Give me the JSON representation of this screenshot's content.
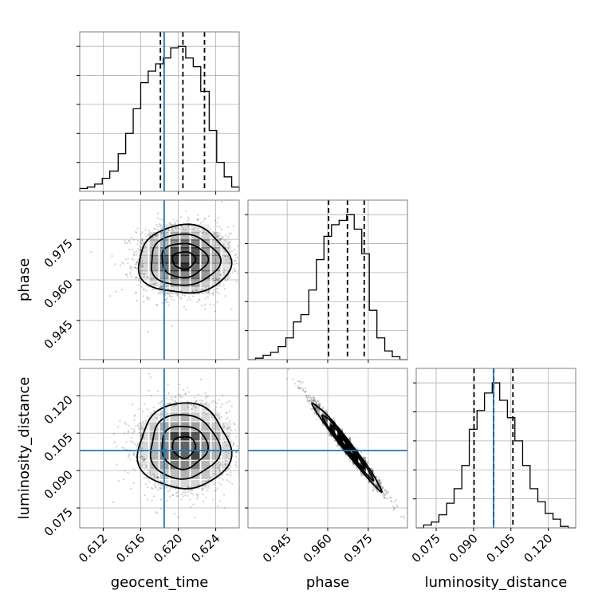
{
  "chart_data": {
    "type": "corner",
    "title": "",
    "parameters": [
      {
        "name": "geocent_time",
        "label": "geocent_time",
        "range": [
          0.6095,
          0.6265
        ],
        "ticks": [
          0.612,
          0.616,
          0.62,
          0.624
        ],
        "tick_labels": [
          "0.612",
          "0.616",
          "0.620",
          "0.624"
        ],
        "injection": 0.6185,
        "quantiles": [
          0.6181,
          0.6205,
          0.6228
        ],
        "hist_bin_edges": [
          0.6095,
          0.6103,
          0.6111,
          0.6119,
          0.6127,
          0.6136,
          0.6144,
          0.6152,
          0.616,
          0.6168,
          0.6176,
          0.6184,
          0.6192,
          0.62,
          0.6208,
          0.6216,
          0.6224,
          0.6233,
          0.6241,
          0.6249,
          0.6257,
          0.6265
        ],
        "hist_counts": [
          0.02,
          0.03,
          0.05,
          0.09,
          0.14,
          0.26,
          0.4,
          0.57,
          0.75,
          0.83,
          0.88,
          0.92,
          0.99,
          1.0,
          0.92,
          0.86,
          0.69,
          0.42,
          0.2,
          0.1,
          0.03
        ]
      },
      {
        "name": "phase",
        "label": "phase",
        "range": [
          0.9305,
          0.9895
        ],
        "ticks": [
          0.945,
          0.96,
          0.975
        ],
        "tick_labels": [
          "0.945",
          "0.960",
          "0.975"
        ],
        "injection": null,
        "quantiles": [
          0.9603,
          0.9673,
          0.9735
        ],
        "hist_bin_edges": [
          0.9305,
          0.9333,
          0.9361,
          0.9389,
          0.9417,
          0.9445,
          0.9473,
          0.9501,
          0.953,
          0.9558,
          0.9586,
          0.9614,
          0.9642,
          0.967,
          0.9698,
          0.9726,
          0.9754,
          0.9782,
          0.9811,
          0.9839,
          0.9867,
          0.9895
        ],
        "hist_counts": [
          0.0,
          0.01,
          0.03,
          0.05,
          0.09,
          0.15,
          0.26,
          0.31,
          0.48,
          0.69,
          0.85,
          0.93,
          0.96,
          1.0,
          0.9,
          0.73,
          0.34,
          0.15,
          0.06,
          0.02,
          0.0
        ]
      },
      {
        "name": "luminosity_distance",
        "label": "luminosity_distance",
        "range": [
          0.067,
          0.131
        ],
        "ticks": [
          0.075,
          0.09,
          0.105,
          0.12
        ],
        "tick_labels": [
          "0.075",
          "0.090",
          "0.105",
          "0.120"
        ],
        "injection": 0.098,
        "quantiles": [
          0.0902,
          0.0981,
          0.1058
        ],
        "hist_bin_edges": [
          0.067,
          0.07,
          0.0731,
          0.0761,
          0.0792,
          0.0822,
          0.0853,
          0.0883,
          0.0914,
          0.0944,
          0.0975,
          0.1005,
          0.1036,
          0.1066,
          0.1097,
          0.1127,
          0.1158,
          0.1188,
          0.1219,
          0.1249,
          0.128,
          0.131
        ],
        "hist_counts": [
          0.0,
          0.02,
          0.04,
          0.09,
          0.17,
          0.27,
          0.43,
          0.68,
          0.81,
          0.93,
          1.0,
          0.88,
          0.76,
          0.6,
          0.43,
          0.27,
          0.18,
          0.1,
          0.06,
          0.01,
          0.0
        ]
      }
    ],
    "pairs": [
      {
        "x_param": "geocent_time",
        "y_param": "phase",
        "center": [
          0.6206,
          0.9673
        ],
        "sigma": [
          0.00245,
          0.0063
        ],
        "correlation": 0.0,
        "mode": [
          0.6213,
          0.969
        ],
        "contour_levels_sigma": [
          0.5,
          1.0,
          1.5,
          2.0
        ]
      },
      {
        "x_param": "geocent_time",
        "y_param": "luminosity_distance",
        "center": [
          0.6206,
          0.0995
        ],
        "sigma": [
          0.00245,
          0.0086
        ],
        "correlation": 0.0,
        "mode": [
          0.6208,
          0.0985
        ],
        "contour_levels_sigma": [
          0.5,
          1.0,
          1.5,
          2.0
        ]
      },
      {
        "x_param": "phase",
        "y_param": "luminosity_distance",
        "center": [
          0.9671,
          0.0998
        ],
        "sigma": [
          0.0063,
          0.0087
        ],
        "correlation": -0.985,
        "mode": [
          0.9715,
          0.0925
        ],
        "contour_levels_sigma": [
          0.5,
          1.0,
          1.5,
          2.0
        ]
      }
    ],
    "injection_color": "#1f77b4",
    "contour_color": "#000000",
    "grid": true,
    "legend": "none"
  }
}
